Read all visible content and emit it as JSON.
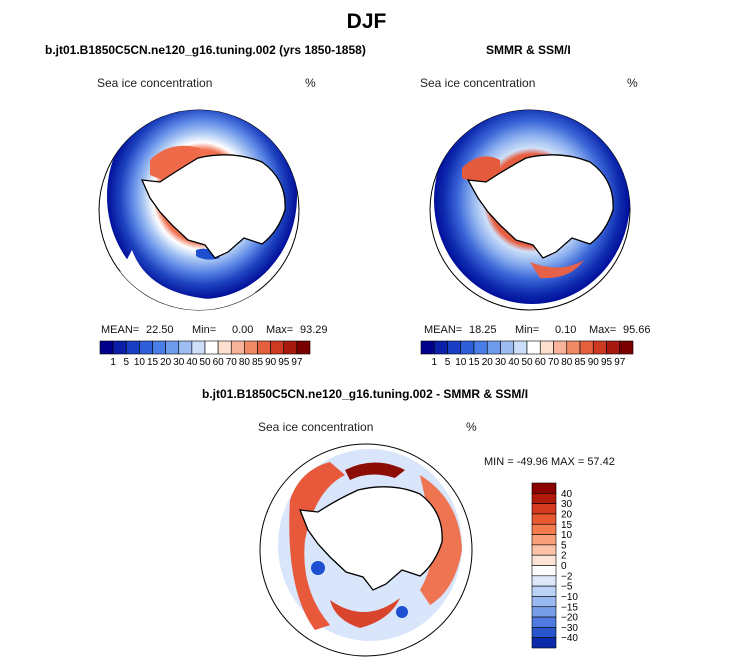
{
  "figure": {
    "title": "DJF",
    "panel_left_title": "b.jt01.B1850C5CN.ne120_g16.tuning.002 (yrs 1850-1858)",
    "panel_right_title": "SMMR & SSM/I",
    "panel_bottom_title": "b.jt01.B1850C5CN.ne120_g16.tuning.002 - SMMR & SSM/I"
  },
  "chart_data": [
    {
      "type": "heatmap",
      "projection": "south-polar-stereographic",
      "field": "Sea ice concentration",
      "units": "%",
      "stats": {
        "mean_label": "MEAN=",
        "mean": "22.50",
        "min_label": "Min=",
        "min": "0.00",
        "max_label": "Max=",
        "max": "93.29"
      },
      "colorbar": {
        "levels": [
          "1",
          "5",
          "10",
          "15",
          "20",
          "30",
          "40",
          "50",
          "60",
          "70",
          "80",
          "85",
          "90",
          "95",
          "97"
        ],
        "colors": [
          "#00008b",
          "#0b1fa8",
          "#1b3fc4",
          "#2f5fd8",
          "#4a7ee6",
          "#6f9bec",
          "#9dbcf2",
          "#cddff8",
          "#ffffff",
          "#fde0d0",
          "#f8b49a",
          "#f08a66",
          "#e4603f",
          "#cc3a22",
          "#a81a10",
          "#7a0000"
        ]
      }
    },
    {
      "type": "heatmap",
      "projection": "south-polar-stereographic",
      "field": "Sea ice concentration",
      "units": "%",
      "stats": {
        "mean_label": "MEAN=",
        "mean": "18.25",
        "min_label": "Min=",
        "min": "0.10",
        "max_label": "Max=",
        "max": "95.66"
      },
      "colorbar": {
        "levels": [
          "1",
          "5",
          "10",
          "15",
          "20",
          "30",
          "40",
          "50",
          "60",
          "70",
          "80",
          "85",
          "90",
          "95",
          "97"
        ],
        "colors": [
          "#00008b",
          "#0b1fa8",
          "#1b3fc4",
          "#2f5fd8",
          "#4a7ee6",
          "#6f9bec",
          "#9dbcf2",
          "#cddff8",
          "#ffffff",
          "#fde0d0",
          "#f8b49a",
          "#f08a66",
          "#e4603f",
          "#cc3a22",
          "#a81a10",
          "#7a0000"
        ]
      }
    },
    {
      "type": "heatmap",
      "projection": "south-polar-stereographic",
      "field": "Sea ice concentration",
      "units": "%",
      "stats": {
        "text": "MIN = -49.96 MAX =  57.42"
      },
      "colorbar": {
        "levels": [
          "40",
          "30",
          "20",
          "15",
          "10",
          "5",
          "2",
          "0",
          "−2",
          "−5",
          "−10",
          "−15",
          "−20",
          "−30",
          "−40"
        ],
        "colors": [
          "#8b0000",
          "#b21a0a",
          "#d63a1e",
          "#ea5a32",
          "#f47b4e",
          "#f9a07a",
          "#fcc2a6",
          "#fde4d6",
          "#ffffff",
          "#dce8fa",
          "#bcd2f6",
          "#9ab9f0",
          "#769de8",
          "#4f7be0",
          "#2a55cc",
          "#0a2aa8"
        ]
      }
    }
  ]
}
